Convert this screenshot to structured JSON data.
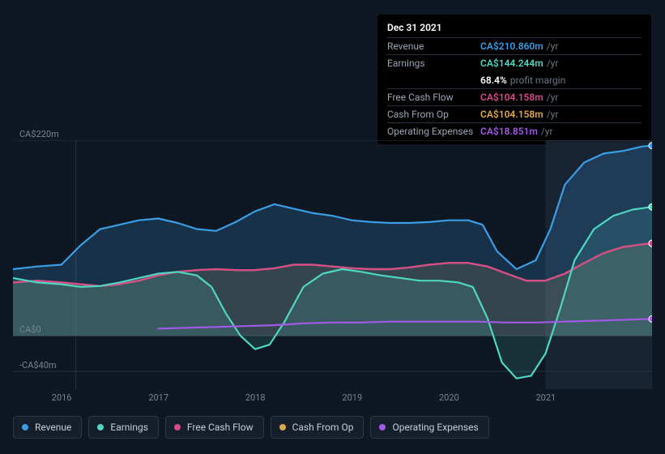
{
  "tooltip": {
    "date": "Dec 31 2021",
    "rows": [
      {
        "label": "Revenue",
        "value": "CA$210.860m",
        "suffix": "/yr",
        "color": "#3b9de6"
      },
      {
        "label": "Earnings",
        "value": "CA$144.244m",
        "suffix": "/yr",
        "color": "#4fd6c3",
        "sub_pct": "68.4%",
        "sub_txt": "profit margin"
      },
      {
        "label": "Free Cash Flow",
        "value": "CA$104.158m",
        "suffix": "/yr",
        "color": "#d94a8a"
      },
      {
        "label": "Cash From Op",
        "value": "CA$104.158m",
        "suffix": "/yr",
        "color": "#e0a84a"
      },
      {
        "label": "Operating Expenses",
        "value": "CA$18.851m",
        "suffix": "/yr",
        "color": "#a05ae6"
      }
    ]
  },
  "chart": {
    "background": "#0e1722",
    "grid_color": "#2b3544",
    "x_domain": [
      2015.5,
      2022.1
    ],
    "y_domain": [
      -60,
      220
    ],
    "yticks": [
      {
        "v": 220,
        "label": "CA$220m"
      },
      {
        "v": 0,
        "label": "CA$0"
      },
      {
        "v": -40,
        "label": "-CA$40m"
      }
    ],
    "xticks": [
      2016,
      2017,
      2018,
      2019,
      2020,
      2021
    ],
    "vline_x": 2016.15,
    "highlight_from": 2021.0,
    "series_order": [
      "cashop",
      "fcf",
      "revenue",
      "earnings",
      "opex"
    ],
    "series": {
      "revenue": {
        "label": "Revenue",
        "color": "#3b9de6",
        "fill_opacity": 0.2,
        "points": [
          [
            2015.5,
            75
          ],
          [
            2015.75,
            78
          ],
          [
            2016.0,
            80
          ],
          [
            2016.2,
            102
          ],
          [
            2016.4,
            120
          ],
          [
            2016.6,
            125
          ],
          [
            2016.8,
            130
          ],
          [
            2017.0,
            132
          ],
          [
            2017.2,
            127
          ],
          [
            2017.4,
            120
          ],
          [
            2017.6,
            118
          ],
          [
            2017.8,
            128
          ],
          [
            2018.0,
            140
          ],
          [
            2018.2,
            148
          ],
          [
            2018.4,
            143
          ],
          [
            2018.6,
            138
          ],
          [
            2018.8,
            135
          ],
          [
            2019.0,
            130
          ],
          [
            2019.2,
            128
          ],
          [
            2019.4,
            127
          ],
          [
            2019.6,
            127
          ],
          [
            2019.8,
            128
          ],
          [
            2020.0,
            130
          ],
          [
            2020.2,
            130
          ],
          [
            2020.35,
            125
          ],
          [
            2020.5,
            95
          ],
          [
            2020.7,
            75
          ],
          [
            2020.9,
            85
          ],
          [
            2021.05,
            120
          ],
          [
            2021.2,
            170
          ],
          [
            2021.4,
            195
          ],
          [
            2021.6,
            205
          ],
          [
            2021.8,
            208
          ],
          [
            2022.0,
            213
          ],
          [
            2022.1,
            214
          ]
        ]
      },
      "earnings": {
        "label": "Earnings",
        "color": "#4fd6c3",
        "fill_opacity": 0.14,
        "points": [
          [
            2015.5,
            65
          ],
          [
            2015.75,
            60
          ],
          [
            2016.0,
            58
          ],
          [
            2016.2,
            55
          ],
          [
            2016.4,
            56
          ],
          [
            2016.6,
            60
          ],
          [
            2016.8,
            65
          ],
          [
            2017.0,
            70
          ],
          [
            2017.2,
            72
          ],
          [
            2017.4,
            68
          ],
          [
            2017.55,
            55
          ],
          [
            2017.7,
            25
          ],
          [
            2017.85,
            0
          ],
          [
            2018.0,
            -15
          ],
          [
            2018.15,
            -10
          ],
          [
            2018.3,
            15
          ],
          [
            2018.5,
            55
          ],
          [
            2018.7,
            70
          ],
          [
            2018.9,
            75
          ],
          [
            2019.1,
            72
          ],
          [
            2019.3,
            68
          ],
          [
            2019.5,
            65
          ],
          [
            2019.7,
            62
          ],
          [
            2019.9,
            62
          ],
          [
            2020.1,
            60
          ],
          [
            2020.25,
            55
          ],
          [
            2020.4,
            20
          ],
          [
            2020.55,
            -30
          ],
          [
            2020.7,
            -48
          ],
          [
            2020.85,
            -45
          ],
          [
            2021.0,
            -20
          ],
          [
            2021.15,
            30
          ],
          [
            2021.3,
            85
          ],
          [
            2021.5,
            120
          ],
          [
            2021.7,
            135
          ],
          [
            2021.9,
            142
          ],
          [
            2022.1,
            145
          ]
        ]
      },
      "fcf": {
        "label": "Free Cash Flow",
        "color": "#d94a8a",
        "fill_opacity": 0.0,
        "points": [
          [
            2015.5,
            60
          ],
          [
            2015.75,
            62
          ],
          [
            2016.0,
            60
          ],
          [
            2016.2,
            58
          ],
          [
            2016.4,
            56
          ],
          [
            2016.6,
            58
          ],
          [
            2016.8,
            62
          ],
          [
            2017.0,
            68
          ],
          [
            2017.2,
            72
          ],
          [
            2017.4,
            74
          ],
          [
            2017.6,
            75
          ],
          [
            2017.8,
            74
          ],
          [
            2018.0,
            74
          ],
          [
            2018.2,
            76
          ],
          [
            2018.4,
            80
          ],
          [
            2018.6,
            80
          ],
          [
            2018.8,
            78
          ],
          [
            2019.0,
            76
          ],
          [
            2019.2,
            75
          ],
          [
            2019.4,
            75
          ],
          [
            2019.6,
            77
          ],
          [
            2019.8,
            80
          ],
          [
            2020.0,
            82
          ],
          [
            2020.2,
            82
          ],
          [
            2020.4,
            78
          ],
          [
            2020.6,
            70
          ],
          [
            2020.8,
            62
          ],
          [
            2021.0,
            62
          ],
          [
            2021.2,
            70
          ],
          [
            2021.4,
            82
          ],
          [
            2021.6,
            93
          ],
          [
            2021.8,
            100
          ],
          [
            2022.0,
            103
          ],
          [
            2022.1,
            104
          ]
        ]
      },
      "cashop": {
        "label": "Cash From Op",
        "color": "#e0a84a",
        "fill_opacity": 0.18,
        "points": [
          [
            2015.5,
            60
          ],
          [
            2015.75,
            62
          ],
          [
            2016.0,
            60
          ],
          [
            2016.2,
            58
          ],
          [
            2016.4,
            56
          ],
          [
            2016.6,
            58
          ],
          [
            2016.8,
            62
          ],
          [
            2017.0,
            68
          ],
          [
            2017.2,
            72
          ],
          [
            2017.4,
            74
          ],
          [
            2017.6,
            75
          ],
          [
            2017.8,
            74
          ],
          [
            2018.0,
            74
          ],
          [
            2018.2,
            76
          ],
          [
            2018.4,
            80
          ],
          [
            2018.6,
            80
          ],
          [
            2018.8,
            78
          ],
          [
            2019.0,
            76
          ],
          [
            2019.2,
            75
          ],
          [
            2019.4,
            75
          ],
          [
            2019.6,
            77
          ],
          [
            2019.8,
            80
          ],
          [
            2020.0,
            82
          ],
          [
            2020.2,
            82
          ],
          [
            2020.4,
            78
          ],
          [
            2020.6,
            70
          ],
          [
            2020.8,
            62
          ],
          [
            2021.0,
            62
          ],
          [
            2021.2,
            70
          ],
          [
            2021.4,
            82
          ],
          [
            2021.6,
            93
          ],
          [
            2021.8,
            100
          ],
          [
            2022.0,
            103
          ],
          [
            2022.1,
            104
          ]
        ]
      },
      "opex": {
        "label": "Operating Expenses",
        "color": "#a05ae6",
        "fill_opacity": 0.0,
        "points": [
          [
            2017.0,
            8
          ],
          [
            2017.3,
            9
          ],
          [
            2017.6,
            10
          ],
          [
            2017.9,
            11
          ],
          [
            2018.2,
            12
          ],
          [
            2018.5,
            14
          ],
          [
            2018.8,
            15
          ],
          [
            2019.1,
            15
          ],
          [
            2019.4,
            16
          ],
          [
            2019.7,
            16
          ],
          [
            2020.0,
            16
          ],
          [
            2020.3,
            16
          ],
          [
            2020.6,
            15
          ],
          [
            2020.9,
            15
          ],
          [
            2021.2,
            16
          ],
          [
            2021.5,
            17
          ],
          [
            2021.8,
            18
          ],
          [
            2022.1,
            19
          ]
        ]
      }
    }
  },
  "legend": [
    {
      "key": "revenue",
      "label": "Revenue",
      "color": "#3b9de6"
    },
    {
      "key": "earnings",
      "label": "Earnings",
      "color": "#4fd6c3"
    },
    {
      "key": "fcf",
      "label": "Free Cash Flow",
      "color": "#d94a8a"
    },
    {
      "key": "cashop",
      "label": "Cash From Op",
      "color": "#e0a84a"
    },
    {
      "key": "opex",
      "label": "Operating Expenses",
      "color": "#a05ae6"
    }
  ]
}
